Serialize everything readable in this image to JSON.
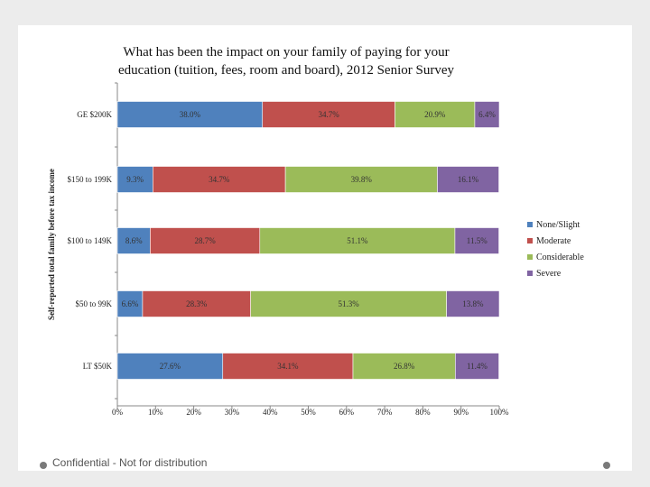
{
  "footer": "Confidential - Not for distribution",
  "chart_data": {
    "type": "bar",
    "orientation": "horizontal",
    "stacked": "percent",
    "title": "What has been the impact on your family of paying for your education (tuition, fees, room and board), 2012 Senior Survey",
    "title_lines": [
      "What has been the impact on your family of paying for your",
      "education (tuition, fees, room and board), 2012 Senior Survey"
    ],
    "ylabel": "Self-reported total family before tax income",
    "xlabel": "",
    "categories": [
      "GE $200K",
      "$150 to 199K",
      "$100 to 149K",
      "$50 to 99K",
      "LT $50K"
    ],
    "xlim": [
      0,
      100
    ],
    "xticks": [
      "0%",
      "10%",
      "20%",
      "30%",
      "40%",
      "50%",
      "60%",
      "70%",
      "80%",
      "90%",
      "100%"
    ],
    "grid": false,
    "legend_position": "right",
    "series": [
      {
        "name": "None/Slight",
        "color": "#4F81BD",
        "values": [
          38.0,
          9.3,
          8.6,
          6.6,
          27.6
        ],
        "labels": [
          "38.0%",
          "9.3%",
          "8.6%",
          "6.6%",
          "27.6%"
        ]
      },
      {
        "name": "Moderate",
        "color": "#C0504D",
        "values": [
          34.7,
          34.7,
          28.7,
          28.3,
          34.1
        ],
        "labels": [
          "34.7%",
          "34.7%",
          "28.7%",
          "28.3%",
          "34.1%"
        ]
      },
      {
        "name": "Considerable",
        "color": "#9BBB59",
        "values": [
          20.9,
          39.8,
          51.1,
          51.3,
          26.8
        ],
        "labels": [
          "20.9%",
          "39.8%",
          "51.1%",
          "51.3%",
          "26.8%"
        ]
      },
      {
        "name": "Severe",
        "color": "#8064A2",
        "values": [
          6.4,
          16.1,
          11.5,
          13.8,
          11.4
        ],
        "labels": [
          "6.4%",
          "16.1%",
          "11.5%",
          "13.8%",
          "11.4%"
        ]
      }
    ]
  }
}
